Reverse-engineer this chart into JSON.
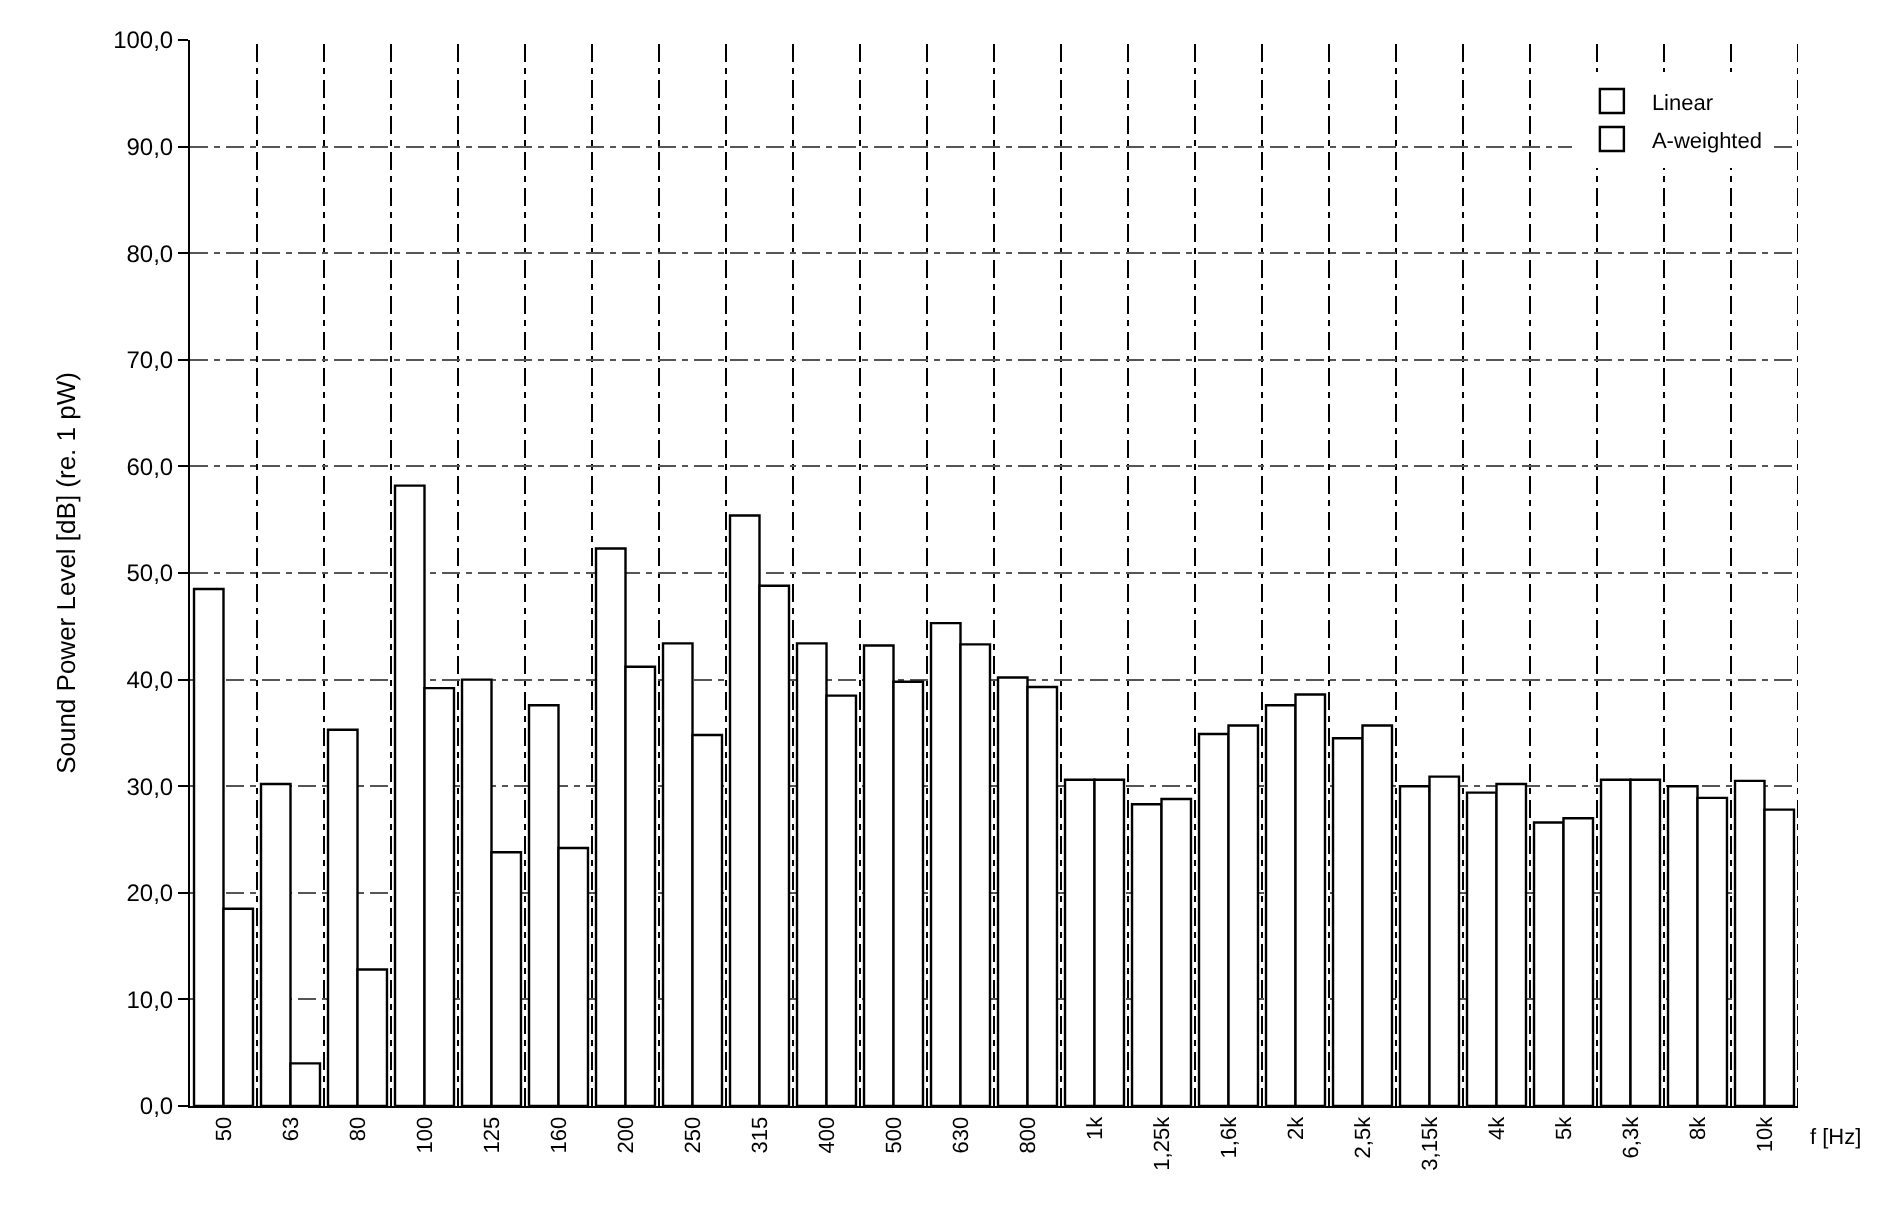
{
  "chart_data": {
    "type": "bar",
    "ylabel": "Sound Power Level [dB] (re. 1 pW)",
    "xlabel": "f [Hz]",
    "categories": [
      "50",
      "63",
      "80",
      "100",
      "125",
      "160",
      "200",
      "250",
      "315",
      "400",
      "500",
      "630",
      "800",
      "1k",
      "1,25k",
      "1,6k",
      "2k",
      "2,5k",
      "3,15k",
      "4k",
      "5k",
      "6,3k",
      "8k",
      "10k"
    ],
    "series": [
      {
        "name": "Linear",
        "color": "#ffffff",
        "values": [
          48.5,
          30.2,
          35.3,
          58.2,
          40.0,
          37.6,
          52.3,
          43.4,
          55.4,
          43.4,
          43.2,
          45.3,
          40.2,
          30.6,
          28.3,
          34.9,
          37.6,
          34.5,
          30.0,
          29.4,
          26.6,
          30.6,
          30.0,
          30.5
        ]
      },
      {
        "name": "A-weighted",
        "color": "#ffffff",
        "values": [
          18.5,
          4.0,
          12.8,
          39.2,
          23.8,
          24.2,
          41.2,
          34.8,
          48.8,
          38.5,
          39.8,
          43.3,
          39.3,
          30.6,
          28.8,
          35.7,
          38.6,
          35.7,
          30.9,
          30.2,
          27.0,
          30.6,
          28.9,
          27.8
        ]
      }
    ],
    "ylim": [
      0,
      100
    ],
    "yticks": [
      {
        "value": 0,
        "label": "0,0"
      },
      {
        "value": 10,
        "label": "10,0"
      },
      {
        "value": 20,
        "label": "20,0"
      },
      {
        "value": 30,
        "label": "30,0"
      },
      {
        "value": 40,
        "label": "40,0"
      },
      {
        "value": 50,
        "label": "50,0"
      },
      {
        "value": 60,
        "label": "60,0"
      },
      {
        "value": 70,
        "label": "70,0"
      },
      {
        "value": 80,
        "label": "80,0"
      },
      {
        "value": 90,
        "label": "90,0"
      },
      {
        "value": 100,
        "label": "100,0"
      }
    ],
    "grid": true,
    "legend": "top right"
  }
}
